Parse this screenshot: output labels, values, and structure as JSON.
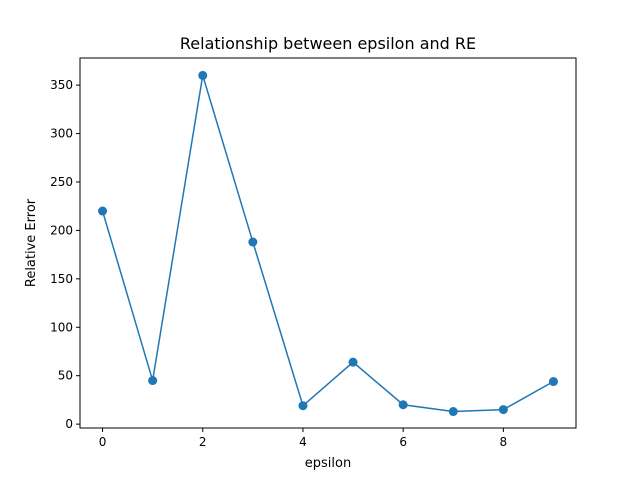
{
  "chart_data": {
    "type": "line",
    "title": "Relationship between epsilon and RE",
    "xlabel": "epsilon",
    "ylabel": "Relative Error",
    "x": [
      0,
      1,
      2,
      3,
      4,
      5,
      6,
      7,
      8,
      9
    ],
    "series": [
      {
        "values": [
          220,
          45,
          360,
          188,
          19,
          64,
          20,
          13,
          15,
          44
        ],
        "color": "#1f77b4",
        "marker": "circle"
      }
    ],
    "xlim": [
      -0.45,
      9.45
    ],
    "ylim": [
      -4,
      378
    ],
    "xticks": [
      0,
      2,
      4,
      6,
      8
    ],
    "yticks": [
      0,
      50,
      100,
      150,
      200,
      250,
      300,
      350
    ],
    "grid": false,
    "legend": "none"
  }
}
